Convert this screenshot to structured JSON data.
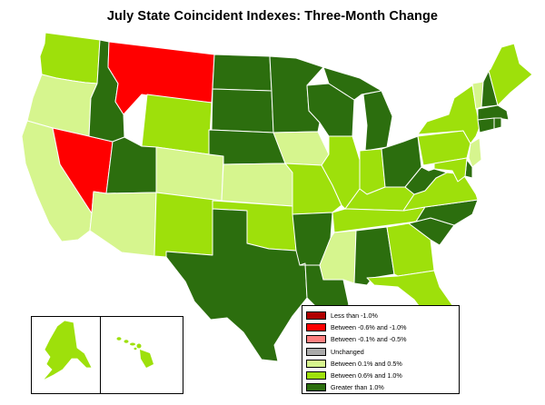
{
  "title": "July State Coincident Indexes: Three-Month Change",
  "colors": {
    "dark_red": "#b00000",
    "red": "#ff0000",
    "pink": "#ff8080",
    "gray": "#aaaaaa",
    "light_green": "#d6f58e",
    "lime": "#9ee00b",
    "dark_green": "#2c6e0e",
    "border": "#ffffff",
    "background": "#ffffff"
  },
  "legend": {
    "items": [
      {
        "label": "Less than -1.0%",
        "color": "#b00000"
      },
      {
        "label": "Between -0.6% and -1.0%",
        "color": "#ff0000"
      },
      {
        "label": "Between -0.1% and -0.5%",
        "color": "#ff8080"
      },
      {
        "label": "Unchanged",
        "color": "#aaaaaa"
      },
      {
        "label": "Between 0.1% and 0.5%",
        "color": "#d6f58e"
      },
      {
        "label": "Between 0.6% and 1.0%",
        "color": "#9ee00b"
      },
      {
        "label": "Greater than 1.0%",
        "color": "#2c6e0e"
      }
    ]
  },
  "states": {
    "WA": "Between 0.6% and 1.0%",
    "OR": "Between 0.1% and 0.5%",
    "CA": "Between 0.1% and 0.5%",
    "NV": "Between -0.6% and -1.0%",
    "ID": "Greater than 1.0%",
    "MT": "Between -0.6% and -1.0%",
    "WY": "Between 0.6% and 1.0%",
    "UT": "Greater than 1.0%",
    "AZ": "Between 0.1% and 0.5%",
    "CO": "Between 0.1% and 0.5%",
    "NM": "Between 0.6% and 1.0%",
    "ND": "Greater than 1.0%",
    "SD": "Greater than 1.0%",
    "NE": "Greater than 1.0%",
    "KS": "Between 0.1% and 0.5%",
    "OK": "Between 0.6% and 1.0%",
    "TX": "Greater than 1.0%",
    "MN": "Greater than 1.0%",
    "IA": "Between 0.1% and 0.5%",
    "MO": "Between 0.6% and 1.0%",
    "AR": "Greater than 1.0%",
    "LA": "Greater than 1.0%",
    "WI": "Greater than 1.0%",
    "IL": "Between 0.6% and 1.0%",
    "MI": "Greater than 1.0%",
    "IN": "Between 0.6% and 1.0%",
    "OH": "Greater than 1.0%",
    "KY": "Between 0.6% and 1.0%",
    "TN": "Between 0.6% and 1.0%",
    "MS": "Between 0.1% and 0.5%",
    "AL": "Greater than 1.0%",
    "GA": "Between 0.6% and 1.0%",
    "FL": "Between 0.6% and 1.0%",
    "SC": "Greater than 1.0%",
    "NC": "Greater than 1.0%",
    "VA": "Between 0.6% and 1.0%",
    "WV": "Greater than 1.0%",
    "PA": "Between 0.6% and 1.0%",
    "NY": "Between 0.6% and 1.0%",
    "ME": "Between 0.6% and 1.0%",
    "VT": "Between 0.1% and 0.5%",
    "NH": "Greater than 1.0%",
    "MA": "Greater than 1.0%",
    "CT": "Greater than 1.0%",
    "RI": "Greater than 1.0%",
    "NJ": "Between 0.1% and 0.5%",
    "DE": "Greater than 1.0%",
    "MD": "Between 0.6% and 1.0%",
    "AK": "Between 0.6% and 1.0%",
    "HI": "Between 0.6% and 1.0%"
  }
}
